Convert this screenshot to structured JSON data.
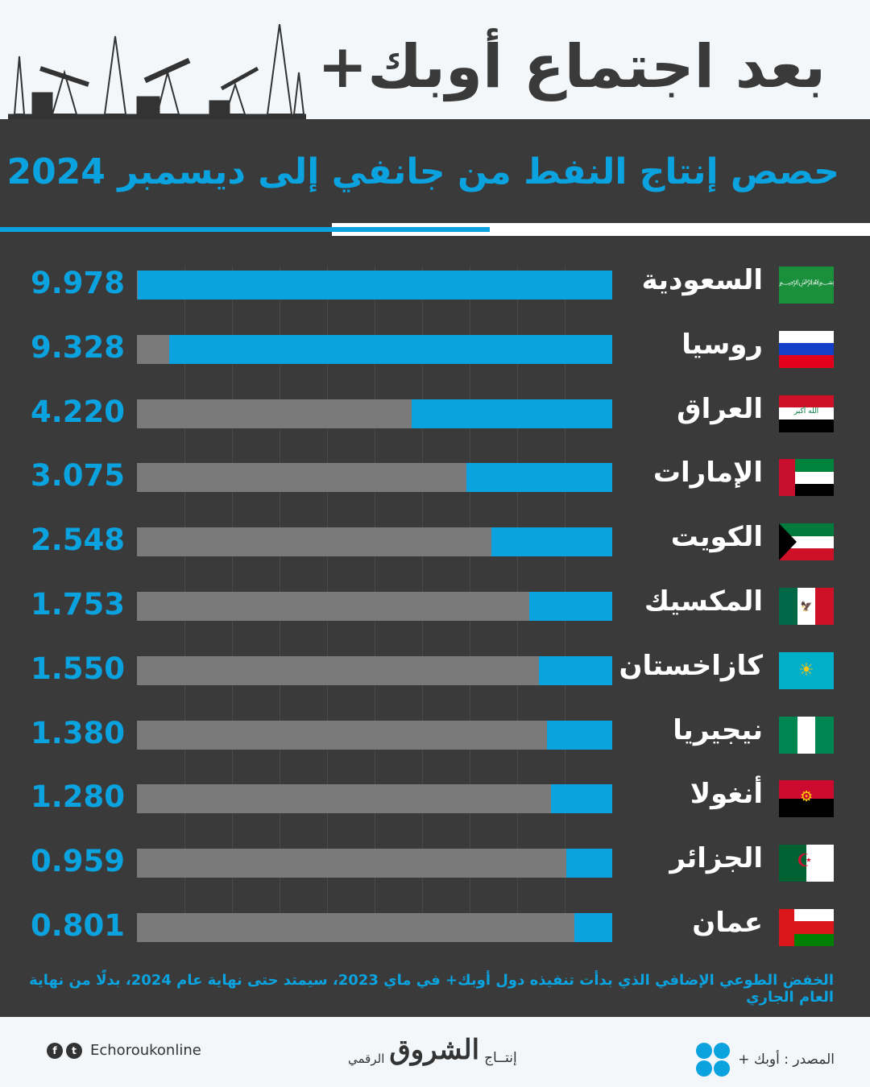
{
  "header": {
    "title": "بعد اجتماع أوبك+",
    "subtitle": "حصص إنتاج النفط من جانفي إلى ديسمبر 2024"
  },
  "colors": {
    "accent": "#0aa3e0",
    "bar_bg": "#7a7a7a",
    "panel": "#3a3a3a"
  },
  "chart_data": {
    "type": "bar",
    "orientation": "horizontal",
    "title": "حصص إنتاج النفط من جانفي إلى ديسمبر 2024",
    "categories": [
      "السعودية",
      "روسيا",
      "العراق",
      "الإمارات",
      "الكويت",
      "المكسيك",
      "كازاخستان",
      "نيجيريا",
      "أنغولا",
      "الجزائر",
      "عمان"
    ],
    "values": [
      9.978,
      9.328,
      4.22,
      3.075,
      2.548,
      1.753,
      1.55,
      1.38,
      1.28,
      0.959,
      0.801
    ],
    "labels": [
      "9.978",
      "9.328",
      "4.220",
      "3.075",
      "2.548",
      "1.753",
      "1.550",
      "1.380",
      "1.280",
      "0.959",
      "0.801"
    ],
    "flags": [
      "saudi",
      "russia",
      "iraq",
      "uae",
      "kuwait",
      "mexico",
      "kazakhstan",
      "nigeria",
      "angola",
      "algeria",
      "oman"
    ],
    "xlim": [
      0,
      10
    ]
  },
  "note": "الخفض الطوعي الإضافي الذي بدأت تنفيذه دول أوبك+ في ماي 2023، سيمتد حتى نهاية عام 2024، بدلًا من نهاية العام الجاري",
  "footer": {
    "social": "Echoroukonline",
    "production": "إنتــاج",
    "brand": "الشروق",
    "digital": "الرقمي",
    "source": "المصدر : أوبك +"
  }
}
